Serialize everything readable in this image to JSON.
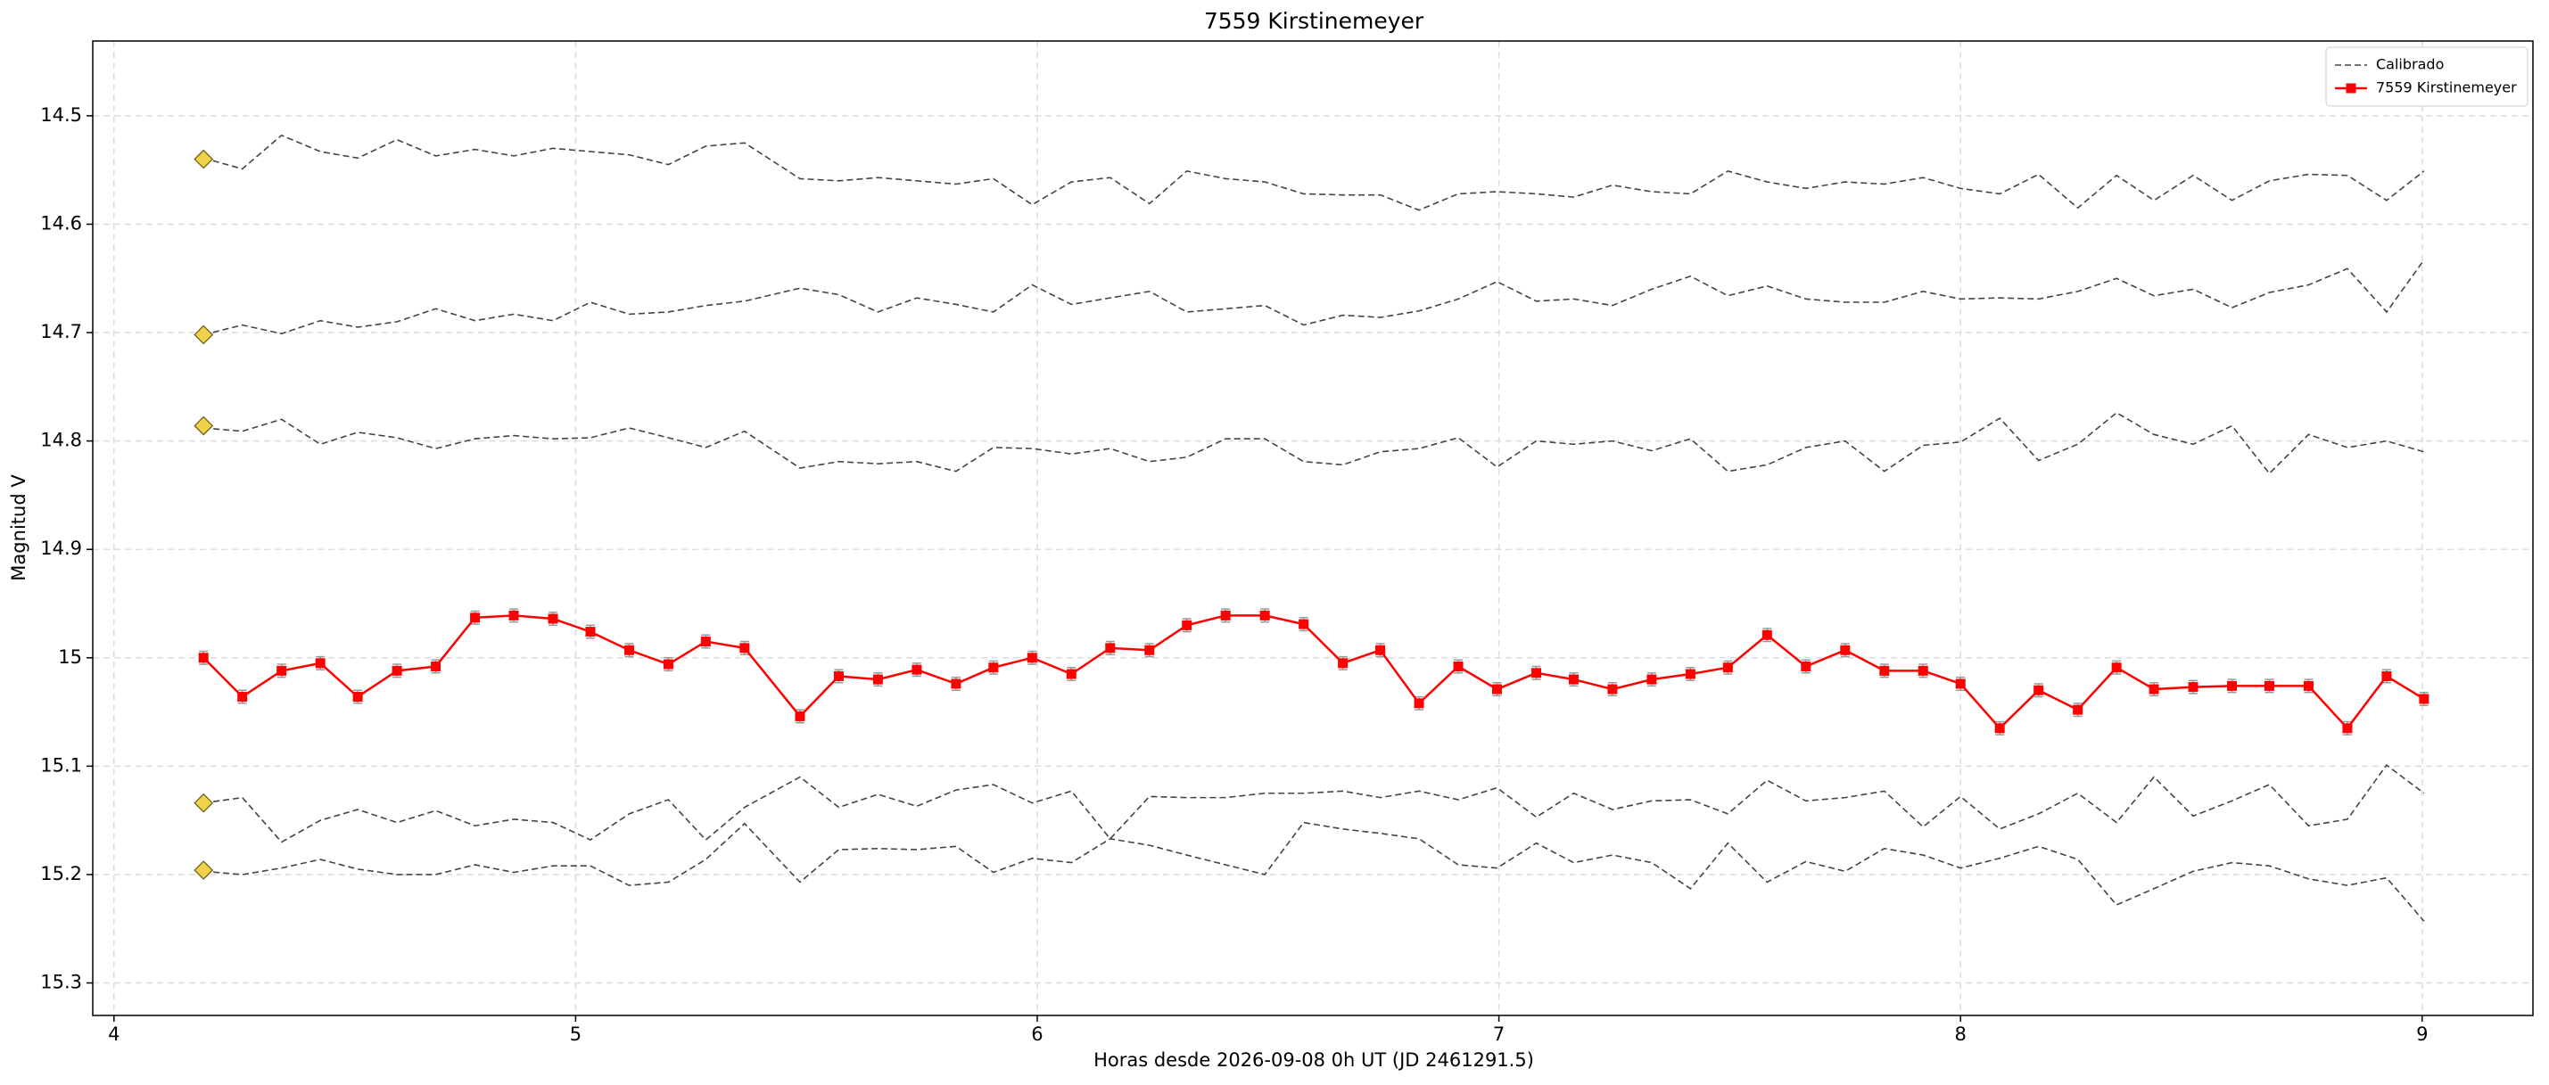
{
  "chart_data": {
    "type": "line",
    "title": "7559 Kirstinemeyer",
    "xlabel": "Horas desde 2026-09-08 0h UT (JD 2461291.5)",
    "ylabel": "Magnitud V",
    "xlim": [
      3.954,
      9.24
    ],
    "xticks": [
      4,
      5,
      6,
      7,
      8,
      9
    ],
    "ylim": [
      15.33,
      14.431
    ],
    "yticks": [
      14.5,
      14.6,
      14.7,
      14.8,
      14.9,
      15.0,
      15.1,
      15.2,
      15.3
    ],
    "grid": true,
    "legend": "upper right",
    "x": [
      4.194,
      4.278,
      4.363,
      4.447,
      4.528,
      4.613,
      4.697,
      4.782,
      4.866,
      4.951,
      5.032,
      5.116,
      5.201,
      5.282,
      5.366,
      5.486,
      5.57,
      5.655,
      5.739,
      5.824,
      5.905,
      5.989,
      6.074,
      6.158,
      6.243,
      6.324,
      6.408,
      6.493,
      6.577,
      6.662,
      6.743,
      6.827,
      6.912,
      6.996,
      7.081,
      7.162,
      7.246,
      7.331,
      7.415,
      7.496,
      7.581,
      7.665,
      7.75,
      7.835,
      7.919,
      8.0,
      8.085,
      8.169,
      8.254,
      8.338,
      8.419,
      8.504,
      8.588,
      8.669,
      8.754,
      8.838,
      8.923,
      9.004
    ],
    "calibrated": {
      "name": "Calibrado",
      "color": "#444444",
      "lines": [
        [
          14.539,
          14.549,
          14.518,
          14.533,
          14.539,
          14.522,
          14.537,
          14.531,
          14.537,
          14.53,
          14.533,
          14.536,
          14.545,
          14.528,
          14.525,
          14.558,
          14.56,
          14.557,
          14.56,
          14.563,
          14.558,
          14.582,
          14.561,
          14.557,
          14.581,
          14.551,
          14.558,
          14.561,
          14.572,
          14.573,
          14.573,
          14.587,
          14.572,
          14.57,
          14.572,
          14.575,
          14.564,
          14.57,
          14.572,
          14.551,
          14.561,
          14.567,
          14.561,
          14.563,
          14.557,
          14.567,
          14.572,
          14.554,
          14.585,
          14.555,
          14.578,
          14.555,
          14.578,
          14.56,
          14.554,
          14.555,
          14.578,
          14.551
        ],
        [
          14.702,
          14.693,
          14.701,
          14.689,
          14.695,
          14.69,
          14.678,
          14.689,
          14.683,
          14.689,
          14.672,
          14.683,
          14.681,
          14.675,
          14.671,
          14.659,
          14.665,
          14.681,
          14.668,
          14.674,
          14.681,
          14.656,
          14.674,
          14.668,
          14.662,
          14.681,
          14.678,
          14.675,
          14.693,
          14.684,
          14.686,
          14.68,
          14.669,
          14.653,
          14.671,
          14.669,
          14.675,
          14.66,
          14.648,
          14.666,
          14.657,
          14.669,
          14.672,
          14.672,
          14.662,
          14.669,
          14.668,
          14.669,
          14.662,
          14.65,
          14.666,
          14.66,
          14.677,
          14.663,
          14.656,
          14.641,
          14.681,
          14.633
        ],
        [
          14.788,
          14.791,
          14.78,
          14.803,
          14.792,
          14.797,
          14.807,
          14.798,
          14.795,
          14.798,
          14.797,
          14.788,
          14.797,
          14.806,
          14.791,
          14.825,
          14.819,
          14.821,
          14.819,
          14.828,
          14.806,
          14.807,
          14.812,
          14.807,
          14.819,
          14.815,
          14.798,
          14.798,
          14.819,
          14.822,
          14.81,
          14.807,
          14.797,
          14.824,
          14.8,
          14.803,
          14.8,
          14.809,
          14.798,
          14.828,
          14.822,
          14.806,
          14.8,
          14.828,
          14.804,
          14.801,
          14.779,
          14.818,
          14.803,
          14.774,
          14.794,
          14.803,
          14.786,
          14.83,
          14.794,
          14.806,
          14.8,
          14.81
        ],
        [
          15.134,
          15.129,
          15.17,
          15.15,
          15.14,
          15.152,
          15.141,
          15.155,
          15.149,
          15.152,
          15.168,
          15.144,
          15.131,
          15.168,
          15.138,
          15.11,
          15.138,
          15.126,
          15.137,
          15.122,
          15.117,
          15.134,
          15.123,
          15.167,
          15.128,
          15.129,
          15.129,
          15.125,
          15.125,
          15.123,
          15.129,
          15.123,
          15.131,
          15.12,
          15.147,
          15.125,
          15.14,
          15.132,
          15.131,
          15.144,
          15.113,
          15.132,
          15.129,
          15.123,
          15.156,
          15.128,
          15.158,
          15.144,
          15.125,
          15.152,
          15.11,
          15.146,
          15.132,
          15.117,
          15.155,
          15.149,
          15.099,
          15.125
        ],
        [
          15.197,
          15.2,
          15.194,
          15.186,
          15.195,
          15.2,
          15.2,
          15.191,
          15.198,
          15.192,
          15.192,
          15.21,
          15.207,
          15.186,
          15.153,
          15.207,
          15.177,
          15.176,
          15.177,
          15.174,
          15.198,
          15.185,
          15.189,
          15.167,
          15.173,
          15.182,
          15.191,
          15.2,
          15.152,
          15.158,
          15.162,
          15.167,
          15.191,
          15.194,
          15.171,
          15.189,
          15.182,
          15.189,
          15.213,
          15.171,
          15.207,
          15.188,
          15.197,
          15.176,
          15.182,
          15.194,
          15.185,
          15.174,
          15.186,
          15.228,
          15.213,
          15.197,
          15.189,
          15.192,
          15.204,
          15.21,
          15.203,
          15.243
        ]
      ]
    },
    "reference": {
      "color": "#f0d24a",
      "values": [
        14.54,
        14.702,
        14.786,
        15.134,
        15.196
      ]
    },
    "series": [
      {
        "name": "7559 Kirstinemeyer",
        "color": "#ff0000",
        "values": [
          15.0,
          15.036,
          15.012,
          15.005,
          15.036,
          15.012,
          15.008,
          14.963,
          14.961,
          14.964,
          14.976,
          14.993,
          15.006,
          14.985,
          14.991,
          15.054,
          15.017,
          15.02,
          15.011,
          15.024,
          15.009,
          15.0,
          15.015,
          14.991,
          14.993,
          14.97,
          14.961,
          14.961,
          14.969,
          15.005,
          14.993,
          15.042,
          15.008,
          15.029,
          15.014,
          15.02,
          15.029,
          15.02,
          15.015,
          15.009,
          14.979,
          15.008,
          14.993,
          15.012,
          15.012,
          15.024,
          15.065,
          15.03,
          15.048,
          15.009,
          15.029,
          15.027,
          15.026,
          15.026,
          15.026,
          15.065,
          15.017,
          15.038
        ],
        "errors": [
          0.006,
          0.006,
          0.006,
          0.006,
          0.006,
          0.006,
          0.006,
          0.006,
          0.006,
          0.006,
          0.006,
          0.006,
          0.006,
          0.006,
          0.006,
          0.006,
          0.006,
          0.006,
          0.006,
          0.006,
          0.006,
          0.006,
          0.006,
          0.006,
          0.006,
          0.006,
          0.006,
          0.006,
          0.006,
          0.006,
          0.006,
          0.006,
          0.006,
          0.006,
          0.006,
          0.006,
          0.006,
          0.006,
          0.006,
          0.006,
          0.006,
          0.006,
          0.006,
          0.006,
          0.006,
          0.006,
          0.006,
          0.006,
          0.006,
          0.006,
          0.006,
          0.006,
          0.006,
          0.006,
          0.006,
          0.006,
          0.006,
          0.006
        ]
      }
    ]
  }
}
